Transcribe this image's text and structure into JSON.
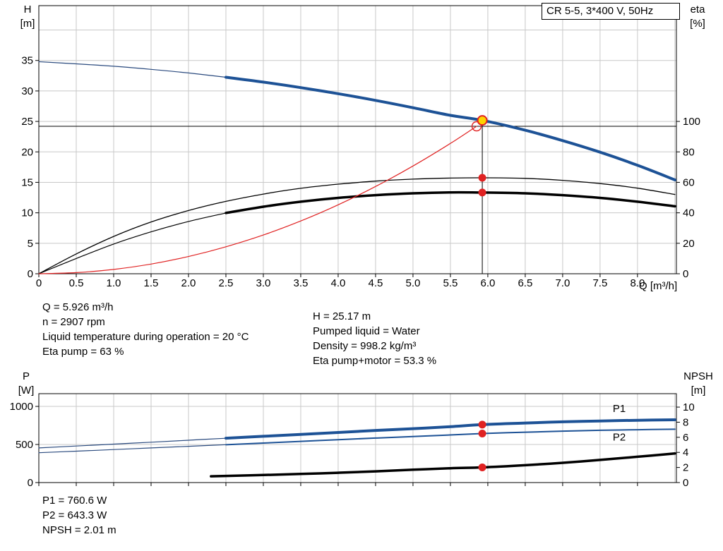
{
  "colors": {
    "blue": "#1d5296",
    "blue_thin": "#2a4a7e",
    "black": "#000000",
    "red": "#e02222",
    "yellow": "#ffd400",
    "grid": "#c8c8c8",
    "axis": "#000000"
  },
  "corner_labels": {
    "head": [
      "H",
      "[m]"
    ],
    "eta": [
      "eta",
      "[%]"
    ],
    "power": [
      "P",
      "[W]"
    ],
    "npsh": [
      "NPSH",
      "[m]"
    ],
    "flow": "Q [m³/h]"
  },
  "info": {
    "top_left": [
      "Q = 5.926 m³/h",
      "n = 2907 rpm",
      "Liquid temperature during operation = 20 °C",
      "Eta pump = 63 %"
    ],
    "top_right": [
      "H = 25.17 m",
      "Pumped liquid = Water",
      "Density = 998.2 kg/m³",
      "Eta pump+motor = 53.3 %"
    ],
    "bottom": [
      "P1 = 760.6 W",
      "P2 = 643.3 W",
      "NPSH = 2.01 m"
    ]
  },
  "chart_data": [
    {
      "id": "qh-eta-chart",
      "type": "line",
      "title": "CR 5-5, 3*400 V, 50Hz",
      "x_axis": {
        "label": "Q [m³/h]",
        "min": 0,
        "max": 8.52,
        "ticks": [
          [
            0,
            "0"
          ],
          [
            0.5,
            "0.5"
          ],
          [
            1,
            "1.0"
          ],
          [
            1.5,
            "1.5"
          ],
          [
            2,
            "2.0"
          ],
          [
            2.5,
            "2.5"
          ],
          [
            3,
            "3.0"
          ],
          [
            3.5,
            "3.5"
          ],
          [
            4,
            "4.0"
          ],
          [
            4.5,
            "4.5"
          ],
          [
            5,
            "5.0"
          ],
          [
            5.5,
            "5.5"
          ],
          [
            6,
            "6.0"
          ],
          [
            6.5,
            "6.5"
          ],
          [
            7,
            "7.0"
          ],
          [
            7.5,
            "7.5"
          ],
          [
            8,
            "8.0"
          ]
        ],
        "grid": [
          0.5,
          1,
          1.5,
          2,
          2.5,
          3,
          3.5,
          4,
          4.5,
          5,
          5.5,
          6,
          6.5,
          7,
          7.5,
          8,
          8.5
        ]
      },
      "y_left": {
        "label": "H [m]",
        "min": 0,
        "max": 44,
        "ticks": [
          [
            0,
            "0"
          ],
          [
            5,
            "5"
          ],
          [
            10,
            "10"
          ],
          [
            15,
            "15"
          ],
          [
            20,
            "20"
          ],
          [
            25,
            "25"
          ],
          [
            30,
            "30"
          ],
          [
            35,
            "35"
          ]
        ],
        "grid": [
          5,
          10,
          15,
          20,
          25,
          30,
          35,
          40
        ]
      },
      "y_right": {
        "label": "eta [%]",
        "min": 0,
        "max": 176,
        "ticks": [
          [
            0,
            "0"
          ],
          [
            20,
            "20"
          ],
          [
            40,
            "40"
          ],
          [
            60,
            "60"
          ],
          [
            80,
            "80"
          ],
          [
            100,
            "100"
          ]
        ]
      },
      "reference_lines": [
        {
          "name": "head-reference-line",
          "type": "h",
          "at": 24.2
        },
        {
          "name": "flow-reference-line",
          "type": "v",
          "at": 5.926,
          "to": 25.17
        }
      ],
      "series": [
        {
          "name": "qh-curve-low-flow",
          "axis": "left",
          "color": "blue_thin",
          "width": 1.2,
          "points": [
            [
              0,
              34.8
            ],
            [
              0.5,
              34.45
            ],
            [
              1,
              34.05
            ],
            [
              1.5,
              33.55
            ],
            [
              2,
              32.95
            ],
            [
              2.5,
              32.25
            ]
          ]
        },
        {
          "name": "qh-curve",
          "axis": "left",
          "color": "blue",
          "width": 4,
          "interactable": true,
          "points": [
            [
              2.5,
              32.25
            ],
            [
              3,
              31.45
            ],
            [
              3.5,
              30.55
            ],
            [
              4,
              29.55
            ],
            [
              4.5,
              28.45
            ],
            [
              5,
              27.25
            ],
            [
              5.5,
              26.0
            ],
            [
              5.926,
              25.17
            ],
            [
              6.5,
              23.55
            ],
            [
              7,
              21.85
            ],
            [
              7.5,
              19.95
            ],
            [
              8,
              17.8
            ],
            [
              8.5,
              15.4
            ]
          ]
        },
        {
          "name": "eta-pump-curve",
          "axis": "right",
          "color": "black",
          "width": 1.3,
          "points": [
            [
              0,
              0
            ],
            [
              0.5,
              13
            ],
            [
              1,
              24.5
            ],
            [
              1.5,
              34
            ],
            [
              2,
              41.5
            ],
            [
              2.5,
              47.5
            ],
            [
              3,
              52.3
            ],
            [
              3.5,
              56.1
            ],
            [
              4,
              58.8
            ],
            [
              4.5,
              60.8
            ],
            [
              5,
              62.1
            ],
            [
              5.5,
              62.8
            ],
            [
              5.926,
              63
            ],
            [
              6.5,
              62.6
            ],
            [
              7,
              61.3
            ],
            [
              7.5,
              59.2
            ],
            [
              8,
              56.2
            ],
            [
              8.5,
              52
            ]
          ]
        },
        {
          "name": "eta-pump-motor-curve-low-flow",
          "axis": "right",
          "color": "black",
          "width": 1.2,
          "points": [
            [
              0,
              0
            ],
            [
              0.5,
              10
            ],
            [
              1,
              19.5
            ],
            [
              1.5,
              27.5
            ],
            [
              2,
              34.3
            ],
            [
              2.5,
              39.9
            ]
          ]
        },
        {
          "name": "eta-pump-motor-curve",
          "axis": "right",
          "color": "black",
          "width": 3.5,
          "points": [
            [
              2.5,
              39.9
            ],
            [
              3,
              44
            ],
            [
              3.5,
              47.3
            ],
            [
              4,
              49.8
            ],
            [
              4.5,
              51.6
            ],
            [
              5,
              52.8
            ],
            [
              5.5,
              53.4
            ],
            [
              5.926,
              53.3
            ],
            [
              6.5,
              52.8
            ],
            [
              7,
              51.6
            ],
            [
              7.5,
              49.8
            ],
            [
              8,
              47.3
            ],
            [
              8.5,
              44.3
            ]
          ]
        },
        {
          "name": "system-curve",
          "axis": "left",
          "color": "red",
          "width": 1.2,
          "points": [
            [
              0,
              0
            ],
            [
              0.5,
              0.18
            ],
            [
              1,
              0.71
            ],
            [
              1.5,
              1.59
            ],
            [
              2,
              2.83
            ],
            [
              2.5,
              4.42
            ],
            [
              3,
              6.36
            ],
            [
              3.5,
              8.66
            ],
            [
              4,
              11.31
            ],
            [
              4.5,
              14.32
            ],
            [
              5,
              17.68
            ],
            [
              5.5,
              21.39
            ],
            [
              5.85,
              24.2
            ]
          ]
        }
      ],
      "markers": [
        {
          "name": "eta-pump-duty-point",
          "style": "red-dot",
          "axis": "right",
          "x": 5.926,
          "y": 63
        },
        {
          "name": "eta-pump-motor-duty-point",
          "style": "red-dot",
          "axis": "right",
          "x": 5.926,
          "y": 53.3
        },
        {
          "name": "requested-duty-point",
          "style": "duty-open",
          "axis": "left",
          "x": 5.85,
          "y": 24.2
        },
        {
          "name": "actual-duty-point",
          "style": "duty-yellow",
          "axis": "left",
          "x": 5.926,
          "y": 25.17
        }
      ]
    },
    {
      "id": "power-npsh-chart",
      "type": "line",
      "x_axis": {
        "label": "",
        "min": 0,
        "max": 8.52,
        "ticks": [
          [
            0
          ],
          [
            0.5
          ],
          [
            1
          ],
          [
            1.5
          ],
          [
            2
          ],
          [
            2.5
          ],
          [
            3
          ],
          [
            3.5
          ],
          [
            4
          ],
          [
            4.5
          ],
          [
            5
          ],
          [
            5.5
          ],
          [
            6
          ],
          [
            6.5
          ],
          [
            7
          ],
          [
            7.5
          ],
          [
            8
          ]
        ],
        "grid": [
          0.5,
          1,
          1.5,
          2,
          2.5,
          3,
          3.5,
          4,
          4.5,
          5,
          5.5,
          6,
          6.5,
          7,
          7.5,
          8,
          8.5
        ]
      },
      "y_left": {
        "label": "P [W]",
        "min": 0,
        "max": 1167,
        "ticks": [
          [
            0,
            "0"
          ],
          [
            500,
            "500"
          ],
          [
            1000,
            "1000"
          ]
        ],
        "grid": [
          500,
          1000
        ]
      },
      "y_right": {
        "label": "NPSH [m]",
        "min": 0,
        "max": 11.78,
        "ticks": [
          [
            0,
            "0"
          ],
          [
            2,
            "2"
          ],
          [
            4,
            "4"
          ],
          [
            6,
            "6"
          ],
          [
            8,
            "8"
          ],
          [
            10,
            "10"
          ]
        ]
      },
      "reference_lines": [],
      "series": [
        {
          "name": "p1-curve-low-flow",
          "axis": "left",
          "color": "blue_thin",
          "width": 1.2,
          "points": [
            [
              0,
              455
            ],
            [
              0.5,
              480
            ],
            [
              1,
              505
            ],
            [
              1.5,
              530
            ],
            [
              2,
              556
            ],
            [
              2.5,
              582
            ]
          ]
        },
        {
          "name": "p1-curve",
          "axis": "left",
          "color": "blue",
          "width": 4,
          "label": "P1",
          "label_at": [
            7.67,
            926
          ],
          "points": [
            [
              2.5,
              582
            ],
            [
              3,
              608
            ],
            [
              3.5,
              633
            ],
            [
              4,
              658
            ],
            [
              4.5,
              684
            ],
            [
              5,
              708
            ],
            [
              5.5,
              734
            ],
            [
              5.926,
              760.6
            ],
            [
              6.5,
              782
            ],
            [
              7,
              797
            ],
            [
              7.5,
              809
            ],
            [
              8,
              818
            ],
            [
              8.5,
              824
            ]
          ]
        },
        {
          "name": "p2-curve-low-flow",
          "axis": "left",
          "color": "blue_thin",
          "width": 1.2,
          "points": [
            [
              0,
              392
            ],
            [
              0.5,
              412
            ],
            [
              1,
              433
            ],
            [
              1.5,
              455
            ],
            [
              2,
              476
            ],
            [
              2.5,
              497
            ]
          ]
        },
        {
          "name": "p2-curve",
          "axis": "left",
          "color": "blue",
          "width": 2,
          "label": "P2",
          "label_at": [
            7.67,
            553
          ],
          "points": [
            [
              2.5,
              497
            ],
            [
              3,
              519
            ],
            [
              3.5,
              541
            ],
            [
              4,
              563
            ],
            [
              4.5,
              584
            ],
            [
              5,
              605
            ],
            [
              5.5,
              625
            ],
            [
              5.926,
              643.3
            ],
            [
              6.5,
              661
            ],
            [
              7,
              675
            ],
            [
              7.5,
              686
            ],
            [
              8,
              694
            ],
            [
              8.5,
              700
            ]
          ]
        },
        {
          "name": "npsh-curve",
          "axis": "right",
          "color": "black",
          "width": 3.5,
          "points": [
            [
              2.3,
              0.83
            ],
            [
              2.5,
              0.88
            ],
            [
              3,
              1.0
            ],
            [
              3.5,
              1.14
            ],
            [
              4,
              1.3
            ],
            [
              4.5,
              1.49
            ],
            [
              5,
              1.7
            ],
            [
              5.5,
              1.9
            ],
            [
              5.926,
              2.01
            ],
            [
              6.5,
              2.3
            ],
            [
              7,
              2.62
            ],
            [
              7.5,
              3.0
            ],
            [
              8,
              3.42
            ],
            [
              8.5,
              3.85
            ]
          ]
        }
      ],
      "markers": [
        {
          "name": "p1-duty-point",
          "style": "red-dot",
          "axis": "left",
          "x": 5.926,
          "y": 760.6
        },
        {
          "name": "p2-duty-point",
          "style": "red-dot",
          "axis": "left",
          "x": 5.926,
          "y": 643.3
        },
        {
          "name": "npsh-duty-point",
          "style": "red-dot",
          "axis": "right",
          "x": 5.926,
          "y": 2.01
        }
      ]
    }
  ]
}
